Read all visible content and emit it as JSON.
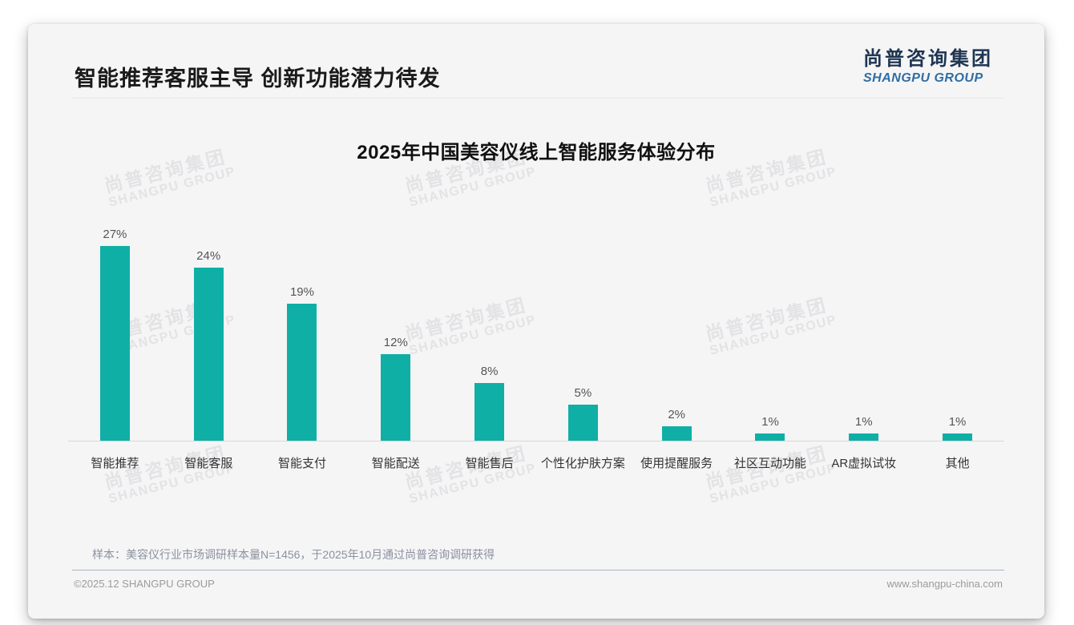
{
  "page": {
    "header_title": "智能推荐客服主导 创新功能潜力待发",
    "logo": {
      "cn": "尚普咨询集团",
      "en": "SHANGPU GROUP"
    },
    "watermark": {
      "cn": "尚普咨询集团",
      "en": "SHANGPU GROUP"
    },
    "footnote": "样本：美容仪行业市场调研样本量N=1456，于2025年10月通过尚普咨询调研获得",
    "footer": {
      "copyright": "©2025.12 SHANGPU GROUP",
      "website": "www.shangpu-china.com"
    }
  },
  "chart_data": {
    "type": "bar",
    "title": "2025年中国美容仪线上智能服务体验分布",
    "categories": [
      "智能推荐",
      "智能客服",
      "智能支付",
      "智能配送",
      "智能售后",
      "个性化护肤方案",
      "使用提醒服务",
      "社区互动功能",
      "AR虚拟试妆",
      "其他"
    ],
    "values": [
      27,
      24,
      19,
      12,
      8,
      5,
      2,
      1,
      1,
      1
    ],
    "value_labels": [
      "27%",
      "24%",
      "19%",
      "12%",
      "8%",
      "5%",
      "2%",
      "1%",
      "1%",
      "1%"
    ],
    "unit": "%",
    "ylim": [
      0,
      28
    ],
    "grid": false,
    "legend": false,
    "bar_color": "#0fafa6"
  },
  "colors": {
    "bar": "#0fafa6",
    "card_bg": "#f5f5f6",
    "logo_cn": "#1e3552",
    "logo_en": "#2e6da4",
    "watermark": "#e3e3e5"
  }
}
